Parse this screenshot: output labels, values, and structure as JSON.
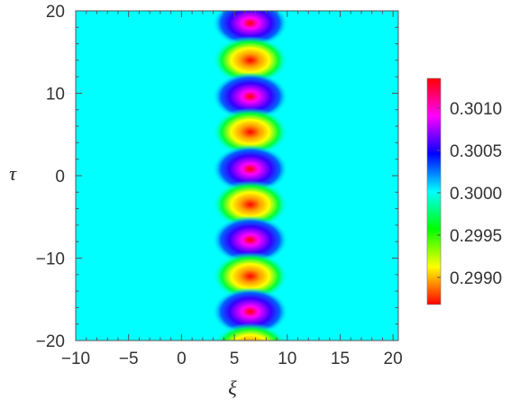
{
  "chart_data": {
    "type": "heatmap",
    "title": "",
    "xlabel": "ξ",
    "ylabel": "τ",
    "xlim": [
      -10,
      20.5
    ],
    "ylim": [
      -20,
      20
    ],
    "x_ticks": [
      -10,
      -5,
      0,
      5,
      10,
      15,
      20
    ],
    "y_ticks": [
      -20,
      -10,
      0,
      10,
      20
    ],
    "x_tick_labels": [
      "−10",
      "−5",
      "0",
      "5",
      "10",
      "15",
      "20"
    ],
    "y_tick_labels": [
      "−20",
      "−10",
      "0",
      "10",
      "20"
    ],
    "grid": false,
    "background_value": 0.3,
    "background_color": "#00ffff",
    "colorbar": {
      "range": [
        0.29868,
        0.30135
      ],
      "ticks": [
        0.299,
        0.2995,
        0.3,
        0.3005,
        0.301
      ],
      "tick_labels": [
        "0.2990",
        "0.2995",
        "0.3000",
        "0.3005",
        "0.3010"
      ],
      "colors": [
        "#ff0000",
        "#ffff00",
        "#00ff00",
        "#00ffff",
        "#0000ff",
        "#ff00ff",
        "#ff0000"
      ],
      "placement": "right"
    },
    "peaks": {
      "center_xi": 6.5,
      "period_tau": 8.8,
      "description_units": "tau",
      "series": [
        {
          "tau": 18.5,
          "extreme": 0.3012,
          "kind": "max"
        },
        {
          "tau": 14.0,
          "extreme": 0.2988,
          "kind": "min"
        },
        {
          "tau": 9.6,
          "extreme": 0.3012,
          "kind": "max"
        },
        {
          "tau": 5.3,
          "extreme": 0.2988,
          "kind": "min"
        },
        {
          "tau": 0.8,
          "extreme": 0.3012,
          "kind": "max"
        },
        {
          "tau": -3.5,
          "extreme": 0.2988,
          "kind": "min"
        },
        {
          "tau": -7.8,
          "extreme": 0.3012,
          "kind": "max"
        },
        {
          "tau": -12.2,
          "extreme": 0.2988,
          "kind": "min"
        },
        {
          "tau": -16.5,
          "extreme": 0.3012,
          "kind": "max"
        },
        {
          "tau": -20.8,
          "extreme": 0.2988,
          "kind": "min"
        }
      ]
    }
  }
}
